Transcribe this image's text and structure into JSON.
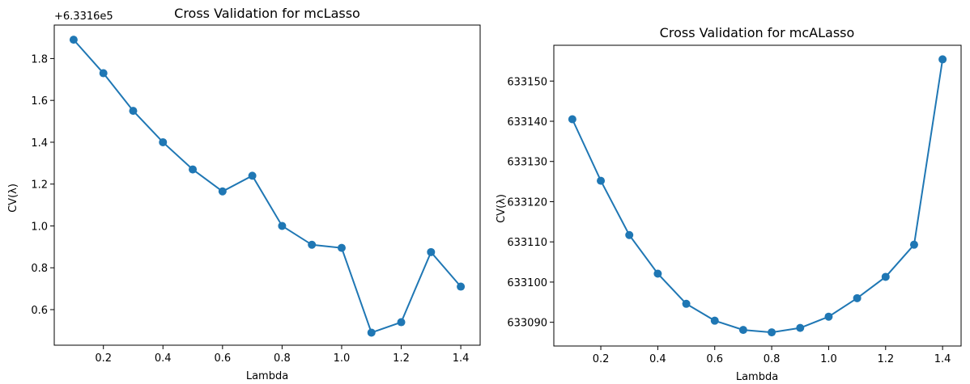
{
  "colors": {
    "series": "#1f77b4"
  },
  "chart_data": [
    {
      "type": "line",
      "title": "Cross Validation for mcLasso",
      "xlabel": "Lambda",
      "ylabel": "CV(λ)",
      "offset_text": "+6.3316e5",
      "xlim": [
        0.035,
        1.465
      ],
      "ylim": [
        0.43,
        1.96
      ],
      "xticks": [
        0.2,
        0.4,
        0.6,
        0.8,
        1.0,
        1.2,
        1.4
      ],
      "xtick_labels": [
        "0.2",
        "0.4",
        "0.6",
        "0.8",
        "1.0",
        "1.2",
        "1.4"
      ],
      "yticks": [
        0.6,
        0.8,
        1.0,
        1.2,
        1.4,
        1.6,
        1.8
      ],
      "ytick_labels": [
        "0.6",
        "0.8",
        "1.0",
        "1.2",
        "1.4",
        "1.6",
        "1.8"
      ],
      "grid": false,
      "marker": "circle",
      "series": [
        {
          "x": [
            0.1,
            0.2,
            0.3,
            0.4,
            0.5,
            0.6,
            0.7,
            0.8,
            0.9,
            1.0,
            1.1,
            1.2,
            1.3,
            1.4
          ],
          "y": [
            1.89,
            1.73,
            1.55,
            1.4,
            1.27,
            1.165,
            1.24,
            1.0,
            0.91,
            0.895,
            0.49,
            0.54,
            0.875,
            0.71
          ]
        }
      ]
    },
    {
      "type": "line",
      "title": "Cross Validation for mcALasso",
      "xlabel": "Lambda",
      "ylabel": "CV(λ)",
      "offset_text": "",
      "xlim": [
        0.035,
        1.465
      ],
      "ylim": [
        633084.1,
        633158.9
      ],
      "xticks": [
        0.2,
        0.4,
        0.6,
        0.8,
        1.0,
        1.2,
        1.4
      ],
      "xtick_labels": [
        "0.2",
        "0.4",
        "0.6",
        "0.8",
        "1.0",
        "1.2",
        "1.4"
      ],
      "yticks": [
        633090,
        633100,
        633110,
        633120,
        633130,
        633140,
        633150
      ],
      "ytick_labels": [
        "633090",
        "633100",
        "633110",
        "633120",
        "633130",
        "633140",
        "633150"
      ],
      "grid": false,
      "marker": "circle",
      "series": [
        {
          "x": [
            0.1,
            0.2,
            0.3,
            0.4,
            0.5,
            0.6,
            0.7,
            0.8,
            0.9,
            1.0,
            1.1,
            1.2,
            1.3,
            1.4
          ],
          "y": [
            633140.5,
            633125.2,
            633111.7,
            633102.1,
            633094.6,
            633090.4,
            633088.1,
            633087.5,
            633088.6,
            633091.4,
            633096.0,
            633101.3,
            633109.3,
            633155.4
          ]
        }
      ]
    }
  ]
}
